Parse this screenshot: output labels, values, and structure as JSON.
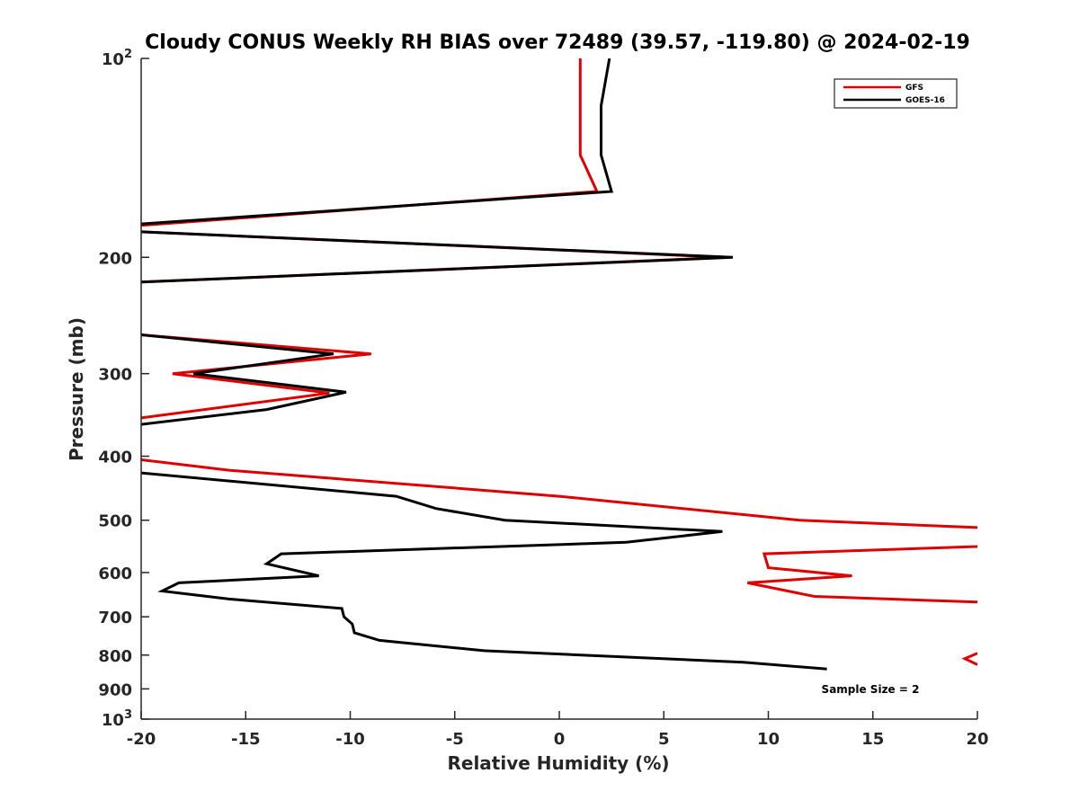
{
  "chart_data": {
    "type": "line",
    "title": "Cloudy CONUS Weekly RH BIAS over 72489 (39.57, -119.80) @ 2024-02-19",
    "xlabel": "Relative Humidity (%)",
    "ylabel": "Pressure (mb)",
    "xlim": [
      -20,
      20
    ],
    "ylim": [
      100,
      1000
    ],
    "y_scale": "log",
    "y_reversed": true,
    "grid": false,
    "x_ticks": [
      "-20",
      "-15",
      "-10",
      "-5",
      "0",
      "5",
      "10",
      "15",
      "20"
    ],
    "x_tick_values": [
      -20,
      -15,
      -10,
      -5,
      0,
      5,
      10,
      15,
      20
    ],
    "y_ticks": [
      {
        "value": 100,
        "base": "10",
        "exp": "2"
      },
      {
        "value": 200,
        "base": "200",
        "exp": ""
      },
      {
        "value": 300,
        "base": "300",
        "exp": ""
      },
      {
        "value": 400,
        "base": "400",
        "exp": ""
      },
      {
        "value": 500,
        "base": "500",
        "exp": ""
      },
      {
        "value": 600,
        "base": "600",
        "exp": ""
      },
      {
        "value": 700,
        "base": "700",
        "exp": ""
      },
      {
        "value": 800,
        "base": "800",
        "exp": ""
      },
      {
        "value": 900,
        "base": "900",
        "exp": ""
      },
      {
        "value": 1000,
        "base": "10",
        "exp": "3"
      }
    ],
    "legend_position": "top-right",
    "annotation": "Sample Size = 2",
    "series": [
      {
        "name": "GFS",
        "color": "#e00000",
        "segments": [
          [
            [
              1.0,
              100
            ],
            [
              1.0,
              140
            ],
            [
              1.8,
              159
            ],
            [
              -20,
              179
            ]
          ],
          [
            [
              -20,
              183
            ],
            [
              8.0,
              200
            ],
            [
              -20,
              218
            ]
          ],
          [
            [
              -20,
              262
            ],
            [
              -9.0,
              280
            ],
            [
              -18.5,
              300
            ],
            [
              -11.0,
              321
            ],
            [
              -20,
              350
            ]
          ],
          [
            [
              -20,
              405
            ],
            [
              -15.8,
              420
            ],
            [
              0.0,
              460
            ],
            [
              11.5,
              500
            ],
            [
              20,
              513
            ]
          ],
          [
            [
              20,
              548
            ],
            [
              9.8,
              562
            ],
            [
              10.0,
              590
            ],
            [
              14.0,
              607
            ],
            [
              9.0,
              622
            ],
            [
              12.2,
              652
            ],
            [
              20,
              665
            ]
          ],
          [
            [
              20,
              795
            ],
            [
              19.4,
              810
            ],
            [
              20,
              827
            ]
          ]
        ]
      },
      {
        "name": "GOES-16",
        "color": "#000000",
        "segments": [
          [
            [
              2.4,
              100
            ],
            [
              2.0,
              118
            ],
            [
              2.0,
              140
            ],
            [
              2.5,
              159
            ],
            [
              -20,
              178
            ]
          ],
          [
            [
              -20,
              183
            ],
            [
              8.3,
              200
            ],
            [
              -20,
              218
            ]
          ],
          [
            [
              -20,
              262
            ],
            [
              -10.8,
              280
            ],
            [
              -17.5,
              300
            ],
            [
              -10.2,
              320
            ],
            [
              -14.0,
              340
            ],
            [
              -20,
              358
            ]
          ],
          [
            [
              -20,
              424
            ],
            [
              -7.8,
              460
            ],
            [
              -5.9,
              480
            ],
            [
              -2.6,
              500
            ],
            [
              7.8,
              520
            ],
            [
              3.2,
              540
            ],
            [
              -13.3,
              562
            ],
            [
              -14.0,
              582
            ],
            [
              -11.5,
              607
            ],
            [
              -18.2,
              622
            ],
            [
              -19.0,
              640
            ],
            [
              -15.8,
              658
            ],
            [
              -10.4,
              680
            ],
            [
              -10.3,
              700
            ],
            [
              -9.9,
              718
            ],
            [
              -9.8,
              740
            ],
            [
              -8.6,
              760
            ],
            [
              -3.6,
              788
            ],
            [
              8.8,
              820
            ],
            [
              12.8,
              840
            ]
          ]
        ]
      }
    ]
  }
}
